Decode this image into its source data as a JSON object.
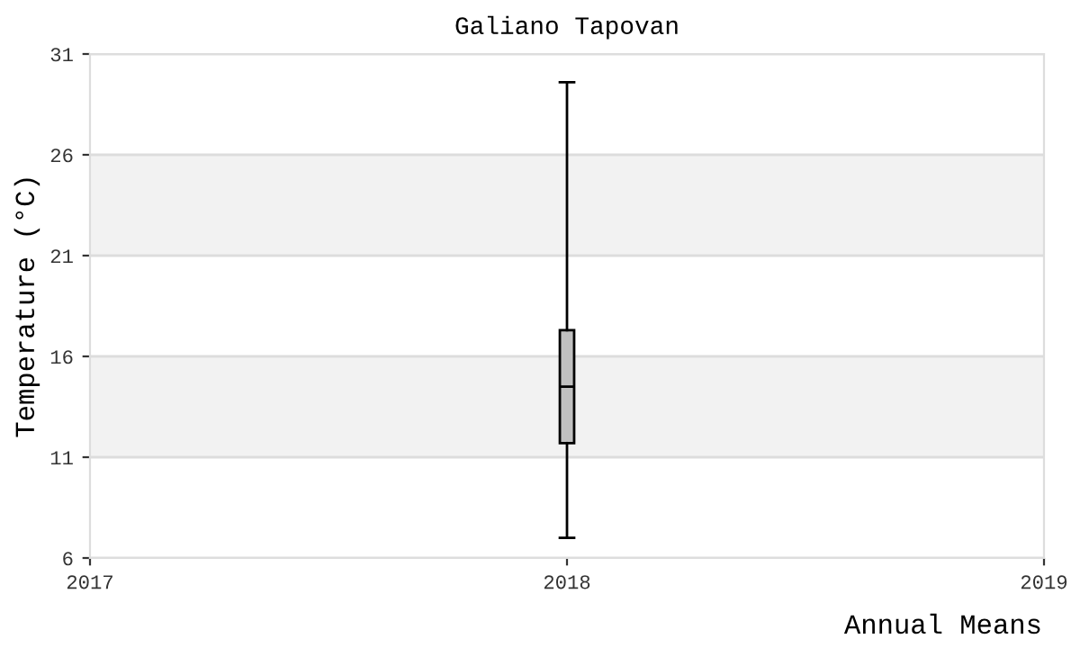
{
  "chart_data": {
    "type": "box",
    "title": "Galiano Tapovan",
    "xlabel": "Annual Means",
    "ylabel": "Temperature (°C)",
    "x": [
      2018
    ],
    "boxes": [
      {
        "low": 7.0,
        "q1": 11.7,
        "median": 14.5,
        "q3": 17.3,
        "high": 29.6
      }
    ],
    "color": "#c0c0c0",
    "xlim": [
      2017,
      2019
    ],
    "xticks": [
      2017,
      2018,
      2019
    ],
    "ylim": [
      6,
      31
    ],
    "yticks": [
      6,
      11,
      16,
      21,
      26,
      31
    ],
    "grid": "y",
    "bands": [
      {
        "axis": "y",
        "from": 11,
        "to": 16,
        "color": "#f2f2f2"
      },
      {
        "axis": "y",
        "from": 21,
        "to": 26,
        "color": "#f2f2f2"
      }
    ]
  }
}
